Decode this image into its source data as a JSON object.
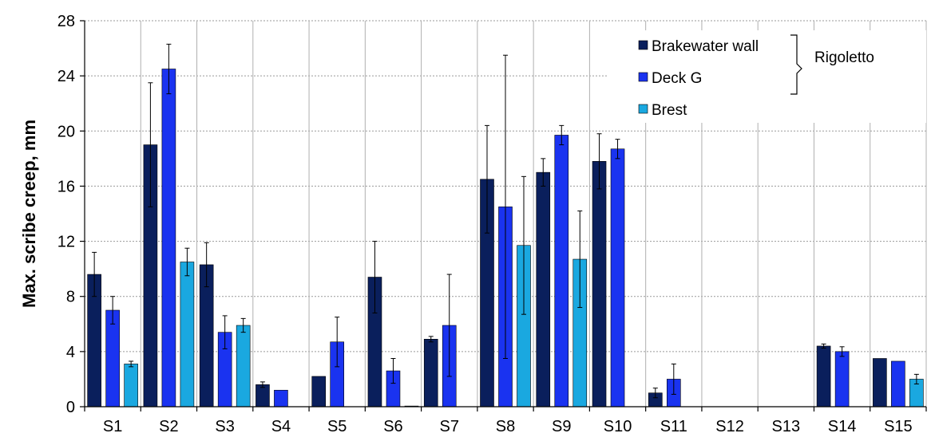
{
  "chart_data": {
    "type": "bar",
    "title": "",
    "xlabel": "",
    "ylabel": "Max. scribe creep, mm",
    "ylim": [
      0,
      28
    ],
    "yticks": [
      0,
      4,
      8,
      12,
      16,
      20,
      24,
      28
    ],
    "grid": "horizontal dotted + vertical category separators",
    "categories": [
      "S1",
      "S2",
      "S3",
      "S4",
      "S5",
      "S6",
      "S7",
      "S8",
      "S9",
      "S10",
      "S11",
      "S12",
      "S13",
      "S14",
      "S15"
    ],
    "series": [
      {
        "name": "Brakewater wall",
        "color": "#0a1f5c",
        "values": [
          9.6,
          19.0,
          10.3,
          1.6,
          2.2,
          9.4,
          4.9,
          16.5,
          17.0,
          17.8,
          1.0,
          null,
          null,
          4.4,
          3.5
        ],
        "errors": [
          1.6,
          4.5,
          1.6,
          0.2,
          0,
          2.6,
          0.2,
          3.9,
          1.0,
          2.0,
          0.35,
          null,
          null,
          0.15,
          0
        ]
      },
      {
        "name": "Deck G",
        "color": "#1a33f0",
        "values": [
          7.0,
          24.5,
          5.4,
          1.2,
          4.7,
          2.6,
          5.9,
          14.5,
          19.7,
          18.7,
          2.0,
          null,
          null,
          4.0,
          3.3
        ],
        "errors": [
          1.0,
          1.8,
          1.2,
          0,
          1.8,
          0.9,
          3.7,
          11.0,
          0.7,
          0.7,
          1.1,
          null,
          null,
          0.35,
          0
        ]
      },
      {
        "name": "Brest",
        "color": "#1aa8e0",
        "values": [
          3.1,
          10.5,
          5.9,
          null,
          null,
          0.05,
          null,
          11.7,
          10.7,
          null,
          null,
          null,
          null,
          null,
          2.0
        ],
        "errors": [
          0.2,
          1.0,
          0.5,
          null,
          null,
          0,
          null,
          5.0,
          3.5,
          null,
          null,
          null,
          null,
          null,
          0.35
        ]
      }
    ],
    "legend": {
      "position": "top-right",
      "group_label": "Rigoletto",
      "group_members": [
        "Brakewater wall",
        "Deck G"
      ]
    }
  }
}
